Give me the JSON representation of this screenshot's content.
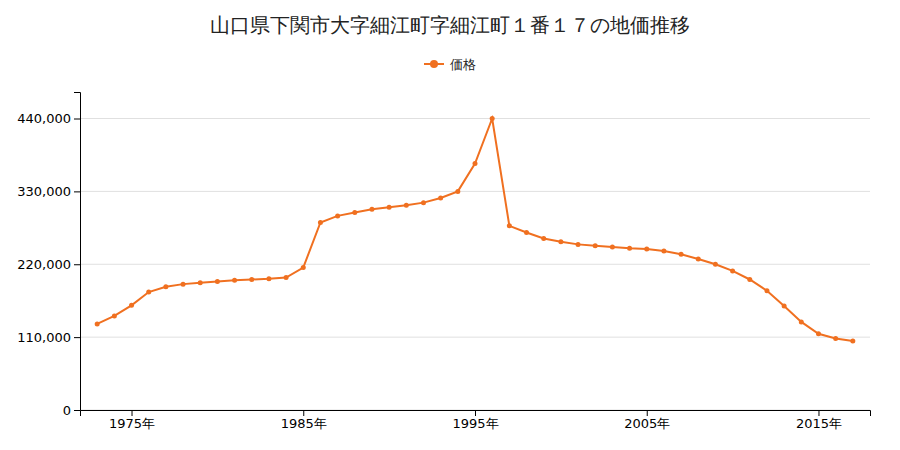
{
  "chart_data": {
    "type": "line",
    "title": "山口県下関市大字細江町字細江町１番１７の地価推移",
    "x": [
      1973,
      1974,
      1975,
      1976,
      1977,
      1978,
      1979,
      1980,
      1981,
      1982,
      1983,
      1984,
      1985,
      1986,
      1987,
      1988,
      1989,
      1990,
      1991,
      1992,
      1993,
      1994,
      1995,
      1996,
      1997,
      1998,
      1999,
      2000,
      2001,
      2002,
      2003,
      2004,
      2005,
      2006,
      2007,
      2008,
      2009,
      2010,
      2011,
      2012,
      2013,
      2014,
      2015,
      2016,
      2017
    ],
    "series": [
      {
        "name": "価格",
        "color": "#f07020",
        "marker": "circle",
        "values": [
          130000,
          142000,
          158000,
          178000,
          186000,
          190000,
          192000,
          194000,
          196000,
          197000,
          198000,
          200000,
          215000,
          283000,
          293000,
          298000,
          303000,
          306000,
          309000,
          313000,
          320000,
          330000,
          372000,
          440000,
          278000,
          268000,
          259000,
          254000,
          250000,
          248000,
          246000,
          244000,
          243000,
          240000,
          235000,
          228000,
          220000,
          210000,
          197000,
          180000,
          157000,
          133000,
          115000,
          108000,
          104000
        ]
      }
    ],
    "xlim": [
      1972,
      2018
    ],
    "xticks": [
      {
        "value": 1975,
        "label": "1975年"
      },
      {
        "value": 1985,
        "label": "1985年"
      },
      {
        "value": 1995,
        "label": "1995年"
      },
      {
        "value": 2005,
        "label": "2005年"
      },
      {
        "value": 2015,
        "label": "2015年"
      }
    ],
    "ylim": [
      0,
      480000
    ],
    "yticks": [
      0,
      {
        "value": 110000,
        "label": "110,000"
      },
      {
        "value": 220000,
        "label": "220,000"
      },
      {
        "value": 330000,
        "label": "330,000"
      },
      {
        "value": 440000,
        "label": "440,000"
      }
    ],
    "grid": true,
    "legend": "top"
  }
}
